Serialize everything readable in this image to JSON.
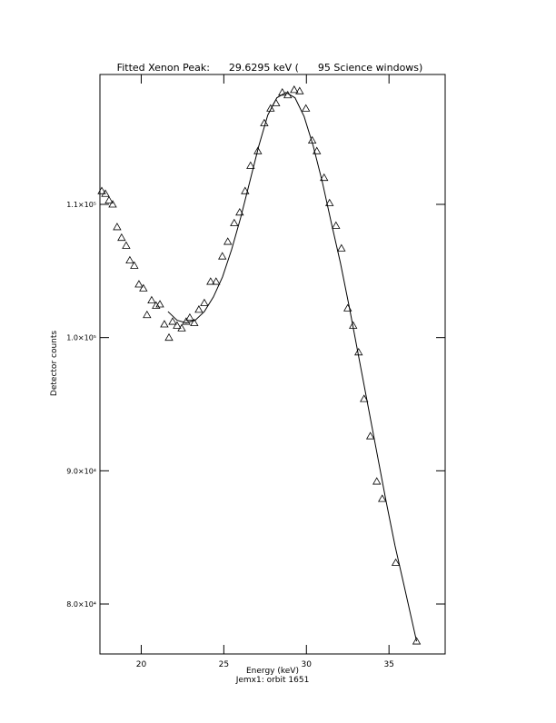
{
  "chart_data": {
    "type": "scatter",
    "title": "Fitted Xenon Peak:      29.6295 keV (      95 Science windows)",
    "x_label": "Energy (keV)",
    "subtitle": "Jemx1: orbit 1651",
    "y_label": "Detector counts",
    "xlim": [
      17.5,
      38.4
    ],
    "xticks": [
      20,
      25,
      30,
      35
    ],
    "ylim": [
      76250,
      119750
    ],
    "yticks": [
      {
        "value": 80000,
        "label": "8.0×10⁴"
      },
      {
        "value": 90000,
        "label": "9.0×10⁴"
      },
      {
        "value": 100000,
        "label": "1.0×10⁵"
      },
      {
        "value": 110000,
        "label": "1.1×10⁵"
      }
    ],
    "series": [
      {
        "marker": "triangle",
        "color": "#000000",
        "x": [
          17.61,
          17.83,
          18.05,
          18.27,
          18.54,
          18.81,
          19.09,
          19.31,
          19.58,
          19.86,
          20.13,
          20.35,
          20.63,
          20.9,
          21.13,
          21.4,
          21.68,
          21.9,
          22.17,
          22.45,
          22.72,
          22.94,
          23.21,
          23.49,
          23.82,
          24.2,
          24.53,
          24.91,
          25.24,
          25.63,
          25.96,
          26.29,
          26.62,
          27.06,
          27.45,
          27.83,
          28.16,
          28.54,
          28.87,
          29.26,
          29.59,
          29.97,
          30.35,
          30.63,
          31.07,
          31.4,
          31.79,
          32.12,
          32.5,
          32.83,
          33.16,
          33.49,
          33.87,
          34.26,
          34.59,
          35.41,
          36.67
        ],
        "values": [
          111000,
          110800,
          110300,
          110000,
          108300,
          107500,
          106900,
          105800,
          105400,
          104000,
          103700,
          101700,
          102800,
          102400,
          102500,
          101000,
          100000,
          101200,
          100900,
          100700,
          101200,
          101500,
          101100,
          102100,
          102600,
          104200,
          104200,
          106100,
          107200,
          108600,
          109400,
          111000,
          112900,
          114000,
          116100,
          117200,
          117600,
          118400,
          118200,
          118600,
          118500,
          117200,
          114800,
          114000,
          112000,
          110100,
          108400,
          106700,
          102200,
          100900,
          98900,
          95400,
          92600,
          89200,
          87900,
          83100,
          77200
        ]
      },
      {
        "marker": "line",
        "color": "#000000",
        "x": [
          21.62,
          22.17,
          22.72,
          23.27,
          23.82,
          24.37,
          24.92,
          25.47,
          26.02,
          26.57,
          27.12,
          27.66,
          28.21,
          28.76,
          29.31,
          29.86,
          30.41,
          30.96,
          31.51,
          32.06,
          32.61,
          33.16,
          33.71,
          34.26,
          34.81,
          35.36,
          35.91,
          36.67
        ],
        "values": [
          101950,
          101300,
          101100,
          101300,
          101950,
          103050,
          104550,
          106600,
          109000,
          111700,
          114400,
          116700,
          118000,
          118400,
          118000,
          116600,
          114400,
          111700,
          108600,
          105600,
          102200,
          98600,
          95000,
          91400,
          87800,
          84400,
          81400,
          77200
        ]
      }
    ]
  }
}
